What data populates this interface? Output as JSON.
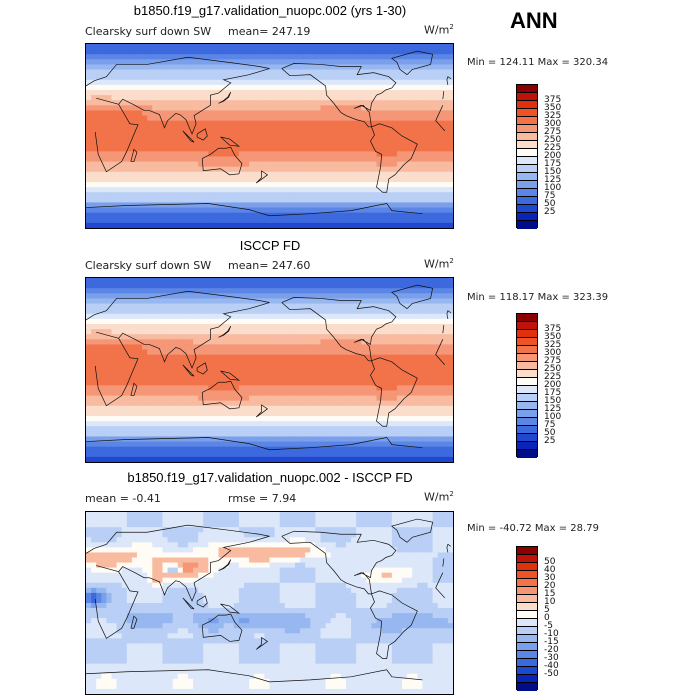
{
  "season": "ANN",
  "panels": [
    {
      "title": "b1850.f19_g17.validation_nuopc.002 (yrs 1-30)",
      "left_label": "Clearsky surf down SW",
      "stat_label": "mean= 247.19",
      "units": "W/m",
      "units_exp": "2",
      "minmax": "Min = 124.11 Max = 320.34",
      "colorbar": {
        "colors": [
          "#8b0000",
          "#c0110a",
          "#e0300e",
          "#f05228",
          "#f2734a",
          "#f59676",
          "#f8bba0",
          "#fbddcc",
          "#fffcf5",
          "#dce8fa",
          "#b9cff5",
          "#97b7f0",
          "#7aa0ec",
          "#5b86e6",
          "#3d69de",
          "#2047d0",
          "#0a24b8",
          "#000c8a"
        ],
        "labels": [
          "375",
          "350",
          "325",
          "300",
          "275",
          "250",
          "225",
          "200",
          "175",
          "150",
          "125",
          "100",
          "75",
          "50",
          "25"
        ]
      },
      "field": "model"
    },
    {
      "title": "ISCCP FD",
      "left_label": "Clearsky surf down SW",
      "stat_label": "mean= 247.60",
      "units": "W/m",
      "units_exp": "2",
      "minmax": "Min = 118.17 Max = 323.39",
      "colorbar": {
        "colors": [
          "#8b0000",
          "#c0110a",
          "#e0300e",
          "#f05228",
          "#f2734a",
          "#f59676",
          "#f8bba0",
          "#fbddcc",
          "#fffcf5",
          "#dce8fa",
          "#b9cff5",
          "#97b7f0",
          "#7aa0ec",
          "#5b86e6",
          "#3d69de",
          "#2047d0",
          "#0a24b8",
          "#000c8a"
        ],
        "labels": [
          "375",
          "350",
          "325",
          "300",
          "275",
          "250",
          "225",
          "200",
          "175",
          "150",
          "125",
          "100",
          "75",
          "50",
          "25"
        ]
      },
      "field": "obs"
    },
    {
      "title": "b1850.f19_g17.validation_nuopc.002 - ISCCP FD",
      "left_label": "mean =   -0.41",
      "stat_label": "rmse =   7.94",
      "units": "W/m",
      "units_exp": "2",
      "minmax": "Min = -40.72 Max =  28.79",
      "colorbar": {
        "colors": [
          "#8b0000",
          "#c0110a",
          "#e0300e",
          "#f05228",
          "#f2734a",
          "#f59676",
          "#f8bba0",
          "#fbddcc",
          "#fffcf5",
          "#dce8fa",
          "#b9cff5",
          "#97b7f0",
          "#7aa0ec",
          "#5b86e6",
          "#3d69de",
          "#2047d0",
          "#0a24b8",
          "#000c8a"
        ],
        "labels": [
          "50",
          "40",
          "30",
          "20",
          "15",
          "10",
          "5",
          "0",
          "-5",
          "-10",
          "-15",
          "-20",
          "-30",
          "-40",
          "-50"
        ]
      },
      "field": "diff"
    }
  ]
}
